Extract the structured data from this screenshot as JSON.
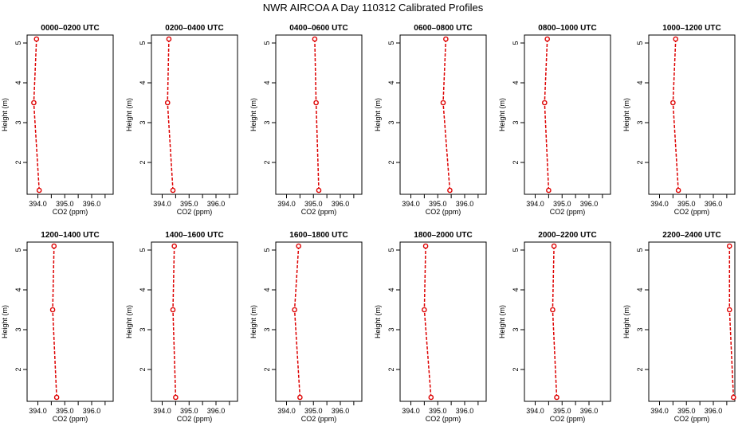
{
  "figure": {
    "title": "NWR AIRCOA A  Day 110312  Calibrated Profiles"
  },
  "styles": {
    "series_color": "#dd0000",
    "axis_color": "#000000"
  },
  "axes": {
    "xlabel": "CO2 (ppm)",
    "ylabel": "Height (m)",
    "xlim": [
      393.6,
      396.8
    ],
    "ylim": [
      1.2,
      5.2
    ],
    "xticks": [
      394.0,
      395.0,
      396.0
    ],
    "xtick_labels": [
      "394.0",
      "395.0",
      "396.0"
    ],
    "xticks_minor": [
      394.5,
      395.5,
      396.5
    ],
    "yticks": [
      2,
      3,
      4,
      5
    ],
    "ytick_labels": [
      "2",
      "3",
      "4",
      "5"
    ]
  },
  "chart_data": [
    {
      "type": "line",
      "title": "0000–0200 UTC",
      "x": [
        393.95,
        393.85,
        394.05
      ],
      "y": [
        5.1,
        3.5,
        1.3
      ]
    },
    {
      "type": "line",
      "title": "0200–0400 UTC",
      "x": [
        394.25,
        394.2,
        394.4
      ],
      "y": [
        5.1,
        3.5,
        1.3
      ]
    },
    {
      "type": "line",
      "title": "0400–0600 UTC",
      "x": [
        395.05,
        395.1,
        395.2
      ],
      "y": [
        5.1,
        3.5,
        1.3
      ]
    },
    {
      "type": "line",
      "title": "0600–0800 UTC",
      "x": [
        395.3,
        395.2,
        395.45
      ],
      "y": [
        5.1,
        3.5,
        1.3
      ]
    },
    {
      "type": "line",
      "title": "0800–1000 UTC",
      "x": [
        394.45,
        394.35,
        394.5
      ],
      "y": [
        5.1,
        3.5,
        1.3
      ]
    },
    {
      "type": "line",
      "title": "1000–1200 UTC",
      "x": [
        394.6,
        394.5,
        394.7
      ],
      "y": [
        5.1,
        3.5,
        1.3
      ]
    },
    {
      "type": "line",
      "title": "1200–1400 UTC",
      "x": [
        394.6,
        394.55,
        394.7
      ],
      "y": [
        5.1,
        3.5,
        1.3
      ]
    },
    {
      "type": "line",
      "title": "1400–1600 UTC",
      "x": [
        394.45,
        394.4,
        394.5
      ],
      "y": [
        5.1,
        3.5,
        1.3
      ]
    },
    {
      "type": "line",
      "title": "1600–1800 UTC",
      "x": [
        394.45,
        394.3,
        394.5
      ],
      "y": [
        5.1,
        3.5,
        1.3
      ]
    },
    {
      "type": "line",
      "title": "1800–2000 UTC",
      "x": [
        394.55,
        394.5,
        394.75
      ],
      "y": [
        5.1,
        3.5,
        1.3
      ]
    },
    {
      "type": "line",
      "title": "2000–2200 UTC",
      "x": [
        394.7,
        394.65,
        394.8
      ],
      "y": [
        5.1,
        3.5,
        1.3
      ]
    },
    {
      "type": "line",
      "title": "2200–2400 UTC",
      "x": [
        396.6,
        396.6,
        396.75
      ],
      "y": [
        5.1,
        3.5,
        1.3
      ]
    }
  ]
}
